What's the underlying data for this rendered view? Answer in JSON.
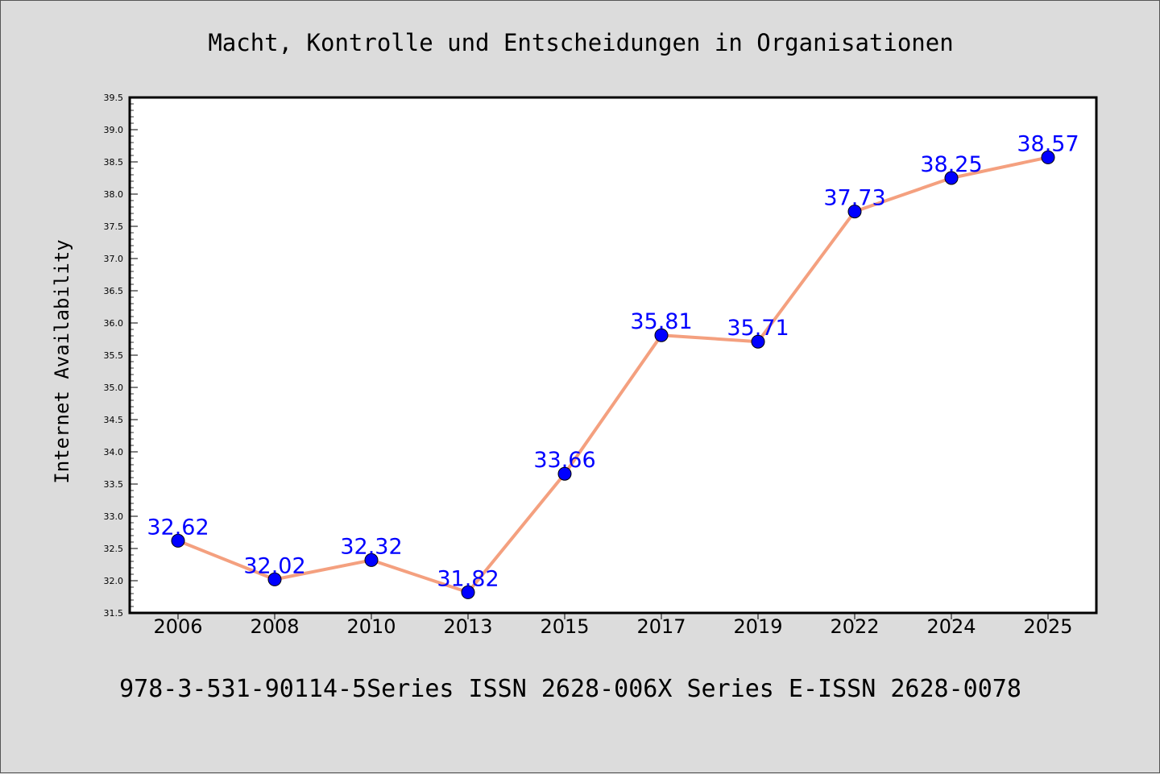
{
  "footer": {
    "text": "978-3-531-90114-5Series ISSN 2628-006X Series E-ISSN 2628-0078"
  },
  "chart_data": {
    "type": "line",
    "title": "Macht, Kontrolle und Entscheidungen in Organisationen",
    "xlabel": "",
    "ylabel": "Internet Availability",
    "categories": [
      "2006",
      "2008",
      "2010",
      "2013",
      "2015",
      "2017",
      "2019",
      "2022",
      "2024",
      "2025"
    ],
    "series": [
      {
        "values": [
          32.62,
          32.02,
          32.32,
          31.82,
          33.66,
          35.81,
          35.71,
          37.73,
          38.25,
          38.57
        ],
        "line_color": "#f4a07f",
        "marker_color": "#0000ff"
      }
    ],
    "data_labels": [
      "32.62",
      "32.02",
      "32.32",
      "31.82",
      "33.66",
      "35.81",
      "35.71",
      "37.73",
      "38.25",
      "38.57"
    ],
    "yticks": [
      "31.5",
      "32.0",
      "32.5",
      "33.0",
      "33.5",
      "34.0",
      "34.5",
      "35.0",
      "35.5",
      "36.0",
      "36.5",
      "37.0",
      "37.5",
      "38.0",
      "38.5",
      "39.0",
      "39.5"
    ],
    "ylim": [
      31.5,
      39.5
    ],
    "grid": false,
    "legend": "none",
    "colors": {
      "background": "#dcdcdc",
      "plot_background": "#ffffff",
      "label": "#0000ff"
    }
  }
}
